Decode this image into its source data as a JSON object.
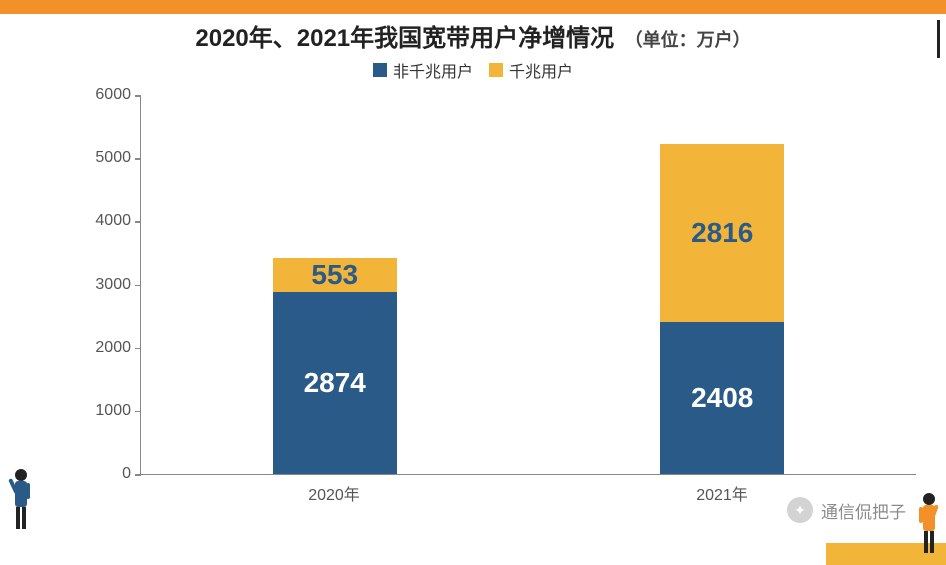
{
  "title": {
    "main": "2020年、2021年我国宽带用户净增情况",
    "unit": "（单位：万户）",
    "main_fontsize": 24,
    "unit_fontsize": 18,
    "color": "#222222"
  },
  "legend": {
    "items": [
      {
        "label": "非千兆用户",
        "color": "#2a5a87"
      },
      {
        "label": "千兆用户",
        "color": "#f2b53a"
      }
    ],
    "fontsize": 16
  },
  "chart": {
    "type": "stacked-bar",
    "background_color": "#ffffff",
    "axis_color": "#888888",
    "ylim": [
      0,
      6000
    ],
    "ytick_step": 1000,
    "yticks": [
      0,
      1000,
      2000,
      3000,
      4000,
      5000,
      6000
    ],
    "categories": [
      "2020年",
      "2021年"
    ],
    "bar_width_ratio": 0.32,
    "series": [
      {
        "name": "非千兆用户",
        "color": "#2a5a87",
        "values": [
          2874,
          2408
        ],
        "label_color": "#ffffff"
      },
      {
        "name": "千兆用户",
        "color": "#f2b53a",
        "values": [
          553,
          2816
        ],
        "label_color": "#2a5a87"
      }
    ],
    "value_label_fontsize": 28,
    "tick_label_fontsize": 16,
    "tick_label_color": "#555555"
  },
  "accent": {
    "top_bar_color": "#f2902a",
    "corner_color": "#f2b53a"
  },
  "watermark": {
    "text": "通信侃把子",
    "icon_bg": "#cccccc"
  }
}
